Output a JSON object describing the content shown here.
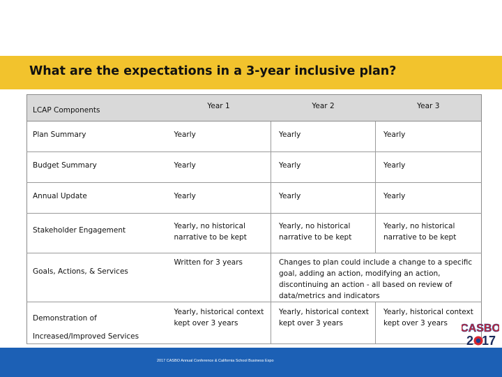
{
  "title": "What are the expectations in a 3-year inclusive plan?",
  "table": {
    "headers": [
      "LCAP Components",
      "Year 1",
      "Year 2",
      "Year 3"
    ],
    "rows": [
      {
        "component": "Plan Summary",
        "year1": "Yearly",
        "year2": "Yearly",
        "year3": "Yearly"
      },
      {
        "component": "Budget Summary",
        "year1": "Yearly",
        "year2": "Yearly",
        "year3": "Yearly"
      },
      {
        "component": "Annual Update",
        "year1": "Yearly",
        "year2": "Yearly",
        "year3": "Yearly"
      },
      {
        "component": "Stakeholder Engagement",
        "year1": "Yearly, no historical narrative to be kept",
        "year2": "Yearly, no historical narrative to be kept",
        "year3": "Yearly, no historical narrative to be kept"
      },
      {
        "component": "Goals, Actions, & Services",
        "year1": "Written for 3 years",
        "year2_3": "Changes to plan could include a change to a specific goal, adding an action, modifying an action, discontinuing an action - all based on review of data/metrics and indicators"
      },
      {
        "component_line1": "Demonstration of",
        "component_line2": "Increased/Improved Services",
        "year1": "Yearly, historical context kept over 3 years",
        "year2": "Yearly, historical context kept over 3 years",
        "year3": "Yearly, historical context kept over 3 years"
      }
    ]
  },
  "logo": {
    "line1": "CASBO",
    "line2_a": "2",
    "line2_b": "17",
    "colors": {
      "red": "#d8262d",
      "blue": "#1c3f94",
      "navy": "#1a2b5c"
    }
  },
  "footer": {
    "text": "2017 CASBO Annual Conference & California School Business Expo"
  },
  "colors": {
    "title_band": "#f2c32d",
    "header_fill": "#d9d9d9",
    "footer_bar": "#1c60b5"
  }
}
